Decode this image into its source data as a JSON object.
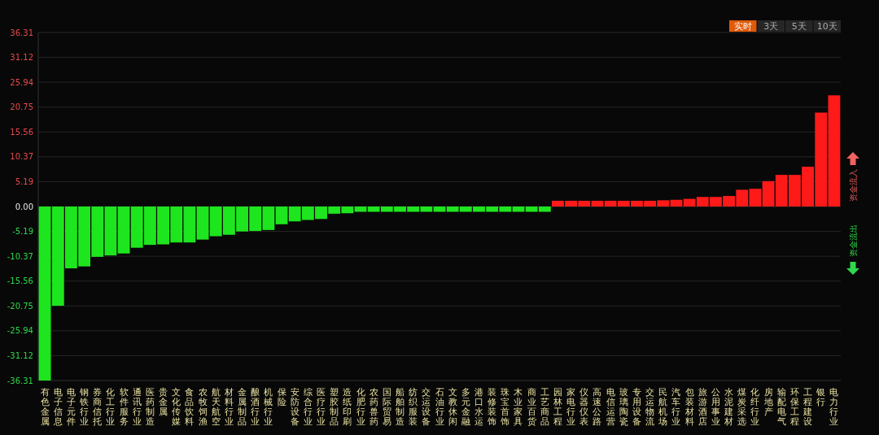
{
  "chart_data": {
    "type": "bar",
    "categories": [
      "有色金属",
      "电子信息",
      "电子元件",
      "钢铁行业",
      "券商信托",
      "化工行业",
      "软件服务",
      "通讯行业",
      "医药制造",
      "贵金属",
      "文化传媒",
      "食品饮料",
      "农牧饲渔",
      "航天航空",
      "材料行业",
      "金属制品",
      "酿酒行业",
      "机械行业",
      "保险",
      "安防设备",
      "综合行业",
      "医疗行业",
      "塑胶制品",
      "造纸印刷",
      "化肥行业",
      "农药兽药",
      "国际贸易",
      "船舶制造",
      "纺织服装",
      "交运设备",
      "石油行业",
      "文教休闲",
      "多元金融",
      "港口水运",
      "装修装饰",
      "珠宝首饰",
      "木业家具",
      "商业百货",
      "工艺商品",
      "园林工程",
      "家电行业",
      "仪器仪表",
      "高速公路",
      "电信运营",
      "玻璃陶瓷",
      "专用设备",
      "交运物流",
      "民航机场",
      "汽车行业",
      "包装材料",
      "旅游酒店",
      "公用事业",
      "水泥建材",
      "煤炭采选",
      "化纤行业",
      "房地产",
      "输配电气",
      "环保工程",
      "工程建设",
      "银行",
      "电力行业"
    ],
    "values": [
      -36.3,
      -20.7,
      -12.9,
      -12.5,
      -10.5,
      -10.2,
      -9.8,
      -8.6,
      -8.0,
      -7.9,
      -7.5,
      -7.5,
      -6.9,
      -6.2,
      -5.9,
      -5.2,
      -5.1,
      -4.9,
      -3.7,
      -3.1,
      -2.8,
      -2.6,
      -1.5,
      -1.4,
      -1.1,
      -1.1,
      -1.1,
      -1.1,
      -1.1,
      -1.1,
      -1.1,
      -1.1,
      -1.1,
      -1.1,
      -1.1,
      -1.1,
      -1.1,
      -1.1,
      -1.1,
      1.2,
      1.2,
      1.2,
      1.2,
      1.2,
      1.2,
      1.2,
      1.2,
      1.3,
      1.4,
      1.6,
      2.0,
      2.0,
      2.2,
      3.5,
      3.7,
      5.3,
      6.6,
      6.6,
      8.3,
      19.6,
      23.2
    ],
    "colors": [
      "#1ee61e",
      "#1ee61e",
      "#1ee61e",
      "#1ee61e",
      "#1ee61e",
      "#1ee61e",
      "#1ee61e",
      "#1ee61e",
      "#1ee61e",
      "#1ee61e",
      "#1ee61e",
      "#1ee61e",
      "#1ee61e",
      "#1ee61e",
      "#1ee61e",
      "#1ee61e",
      "#1ee61e",
      "#1ee61e",
      "#1ee61e",
      "#1ee61e",
      "#1ee61e",
      "#1ee61e",
      "#1ee61e",
      "#1ee61e",
      "#1ee61e",
      "#1ee61e",
      "#1ee61e",
      "#1ee61e",
      "#1ee61e",
      "#1ee61e",
      "#1ee61e",
      "#1ee61e",
      "#1ee61e",
      "#1ee61e",
      "#1ee61e",
      "#1ee61e",
      "#1ee61e",
      "#1ee61e",
      "#1ee61e",
      "#ff1a1a",
      "#ff1a1a",
      "#ff1a1a",
      "#ff1a1a",
      "#ff1a1a",
      "#ff1a1a",
      "#ff1a1a",
      "#ff1a1a",
      "#ff1a1a",
      "#ff1a1a",
      "#ff1a1a",
      "#ff1a1a",
      "#ff1a1a",
      "#ff1a1a",
      "#ff1a1a",
      "#ff1a1a",
      "#ff1a1a",
      "#ff1a1a",
      "#ff1a1a",
      "#ff1a1a",
      "#ff1a1a",
      "#ff1a1a"
    ],
    "ylim": [
      -36.31,
      36.31
    ],
    "yticks": [
      36.31,
      31.12,
      25.94,
      20.75,
      15.56,
      10.37,
      5.19,
      {
        "value": 0,
        "label": "0.00"
      },
      -5.19,
      -10.37,
      -15.56,
      -20.75,
      -25.94,
      -31.12,
      -36.31
    ],
    "grid": "y",
    "annotations": [
      "实时",
      "3天",
      "5天",
      "10天",
      "资金流入",
      "资金流出"
    ]
  }
}
